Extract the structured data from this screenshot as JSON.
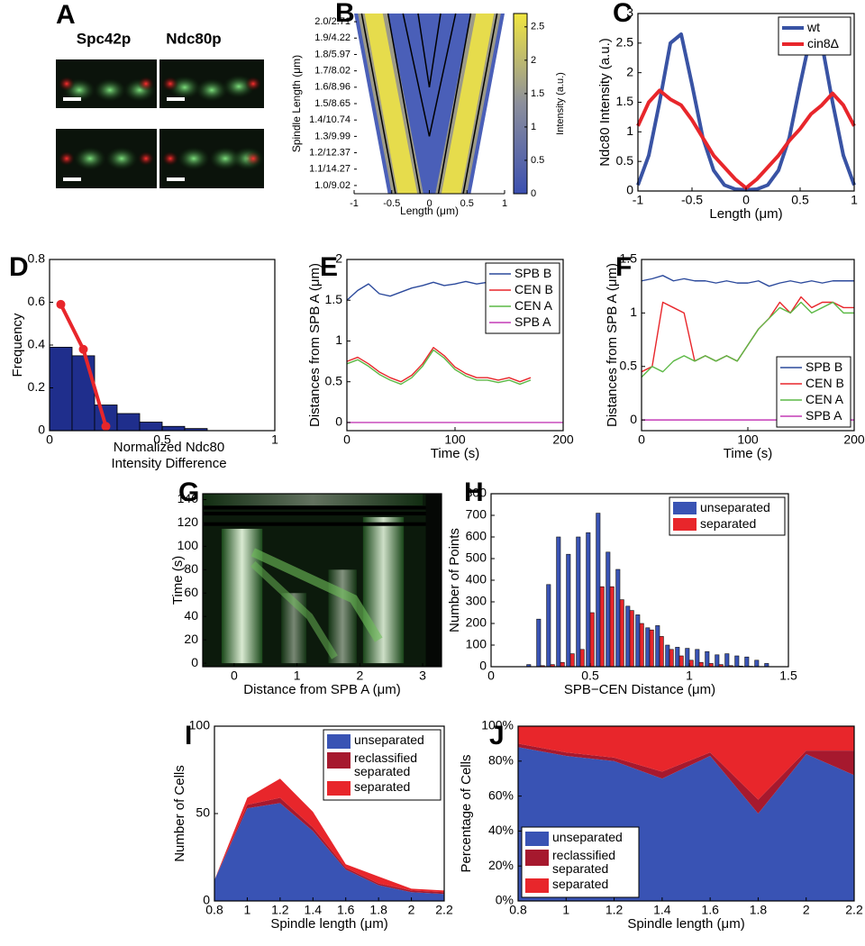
{
  "chart_data": [
    {
      "type": "image",
      "panel": "A",
      "labels": [
        "Spc42p",
        "Ndc80p"
      ],
      "colors": [
        "#e8262b",
        "#2bb24c"
      ]
    },
    {
      "type": "heatmap",
      "panel": "B",
      "ylabel": "Spindle Length (μm)",
      "xlabel": "Length (μm)",
      "categories": [
        "1.0/9.02",
        "1.1/14.27",
        "1.2/12.37",
        "1.3/9.99",
        "1.4/10.74",
        "1.5/8.65",
        "1.6/8.96",
        "1.7/8.02",
        "1.8/5.97",
        "1.9/4.22",
        "2.0/2.71"
      ],
      "xlim": [
        -1,
        1
      ],
      "xticks": [
        -1,
        -0.5,
        0,
        0.5,
        1
      ],
      "colorbar": {
        "lim": [
          0,
          2.7
        ],
        "ticks": [
          0,
          0.5,
          1,
          1.5,
          2,
          2.5
        ],
        "label": "Intensity (a.u.)"
      }
    },
    {
      "type": "line",
      "panel": "C",
      "ylabel": "Ndc80 Intensity (a.u.)",
      "xlabel": "Length (μm)",
      "xlim": [
        -1,
        1
      ],
      "xticks": [
        -1,
        -0.5,
        0,
        0.5,
        1
      ],
      "ylim": [
        0,
        3
      ],
      "yticks": [
        0,
        0.5,
        1,
        1.5,
        2,
        2.5,
        3
      ],
      "legend": "top-right",
      "x": [
        -1,
        -0.9,
        -0.8,
        -0.7,
        -0.6,
        -0.5,
        -0.4,
        -0.3,
        -0.2,
        -0.1,
        0,
        0.1,
        0.2,
        0.3,
        0.4,
        0.5,
        0.6,
        0.7,
        0.8,
        0.9,
        1
      ],
      "series": [
        {
          "name": "wt",
          "color": "#3953a4",
          "values": [
            0.1,
            0.6,
            1.5,
            2.5,
            2.65,
            1.8,
            0.9,
            0.35,
            0.1,
            0.03,
            0.02,
            0.03,
            0.1,
            0.35,
            0.9,
            1.8,
            2.65,
            2.5,
            1.5,
            0.6,
            0.1
          ]
        },
        {
          "name": "cin8Δ",
          "color": "#e8262b",
          "values": [
            1.1,
            1.5,
            1.7,
            1.55,
            1.45,
            1.2,
            0.9,
            0.6,
            0.4,
            0.2,
            0.05,
            0.2,
            0.4,
            0.6,
            0.85,
            1.05,
            1.3,
            1.45,
            1.65,
            1.45,
            1.1
          ]
        }
      ]
    },
    {
      "type": "histogram",
      "panel": "D",
      "ylabel": "Frequency",
      "xlabel": "Normalized Ndc80 Intensity Difference",
      "xlim": [
        0,
        1
      ],
      "xticks": [
        0,
        0.5,
        1
      ],
      "ylim": [
        0,
        0.8
      ],
      "yticks": [
        0,
        0.2,
        0.4,
        0.6,
        0.8
      ],
      "bins": [
        0,
        0.1,
        0.2,
        0.3,
        0.4,
        0.5,
        0.6,
        0.7
      ],
      "values": [
        0.39,
        0.35,
        0.12,
        0.08,
        0.04,
        0.02,
        0.01
      ],
      "color": "#1f2e8c",
      "line": {
        "x": [
          0.05,
          0.15,
          0.25
        ],
        "values": [
          0.59,
          0.38,
          0.02
        ],
        "color": "#e8262b"
      }
    },
    {
      "type": "line",
      "panel": "E",
      "ylabel": "Distances from SPB A (μm)",
      "xlabel": "Time (s)",
      "xlim": [
        0,
        200
      ],
      "xticks": [
        0,
        100,
        200
      ],
      "ylim": [
        -0.1,
        2
      ],
      "yticks": [
        0,
        0.5,
        1,
        1.5,
        2
      ],
      "legend": "top-right",
      "x": [
        0,
        10,
        20,
        30,
        40,
        50,
        60,
        70,
        80,
        90,
        100,
        110,
        120,
        130,
        140,
        150,
        160,
        170,
        180,
        190,
        200
      ],
      "series": [
        {
          "name": "SPB B",
          "color": "#2c4a9c",
          "values": [
            1.5,
            1.62,
            1.7,
            1.58,
            1.55,
            1.6,
            1.65,
            1.68,
            1.72,
            1.68,
            1.7,
            1.73,
            1.7,
            1.72,
            1.68,
            1.65,
            1.62,
            1.6,
            null,
            null,
            null
          ]
        },
        {
          "name": "CEN B",
          "color": "#e8262b",
          "values": [
            0.75,
            0.8,
            0.72,
            0.62,
            0.55,
            0.5,
            0.58,
            0.72,
            0.92,
            0.82,
            0.68,
            0.6,
            0.55,
            0.55,
            0.52,
            0.55,
            0.5,
            0.55,
            null,
            null,
            null
          ]
        },
        {
          "name": "CEN A",
          "color": "#5cb946",
          "values": [
            0.72,
            0.77,
            0.69,
            0.59,
            0.52,
            0.47,
            0.55,
            0.69,
            0.89,
            0.79,
            0.65,
            0.57,
            0.52,
            0.52,
            0.49,
            0.52,
            0.47,
            0.52,
            null,
            null,
            null
          ]
        },
        {
          "name": "SPB A",
          "color": "#c43bb6",
          "values": [
            0,
            0,
            0,
            0,
            0,
            0,
            0,
            0,
            0,
            0,
            0,
            0,
            0,
            0,
            0,
            0,
            0,
            0,
            0,
            0,
            0
          ]
        }
      ]
    },
    {
      "type": "line",
      "panel": "F",
      "ylabel": "Distances from SPB A (μm)",
      "xlabel": "Time (s)",
      "xlim": [
        0,
        200
      ],
      "xticks": [
        0,
        100,
        200
      ],
      "ylim": [
        -0.1,
        1.5
      ],
      "yticks": [
        0,
        0.5,
        1,
        1.5
      ],
      "legend": "bottom-right",
      "x": [
        0,
        10,
        20,
        30,
        40,
        50,
        60,
        70,
        80,
        90,
        100,
        110,
        120,
        130,
        140,
        150,
        160,
        170,
        180,
        190,
        200
      ],
      "series": [
        {
          "name": "SPB B",
          "color": "#2c4a9c",
          "values": [
            1.3,
            1.32,
            1.35,
            1.3,
            1.32,
            1.3,
            1.3,
            1.28,
            1.3,
            1.28,
            1.28,
            1.3,
            1.25,
            1.28,
            1.3,
            1.28,
            1.3,
            1.28,
            1.3,
            1.3,
            1.3
          ]
        },
        {
          "name": "CEN B",
          "color": "#e8262b",
          "values": [
            0.45,
            0.5,
            1.1,
            1.05,
            1.0,
            0.55,
            0.6,
            0.55,
            0.6,
            0.55,
            0.7,
            0.85,
            0.95,
            1.1,
            1.0,
            1.15,
            1.05,
            1.1,
            1.1,
            1.05,
            1.05
          ]
        },
        {
          "name": "CEN A",
          "color": "#5cb946",
          "values": [
            0.4,
            0.5,
            0.45,
            0.55,
            0.6,
            0.55,
            0.6,
            0.55,
            0.6,
            0.55,
            0.7,
            0.85,
            0.95,
            1.05,
            1.0,
            1.1,
            1.0,
            1.05,
            1.1,
            1.0,
            1.0
          ]
        },
        {
          "name": "SPB A",
          "color": "#c43bb6",
          "values": [
            0,
            0,
            0,
            0,
            0,
            0,
            0,
            0,
            0,
            0,
            0,
            0,
            0,
            0,
            0,
            0,
            0,
            0,
            0,
            0,
            0
          ]
        }
      ]
    },
    {
      "type": "kymograph",
      "panel": "G",
      "ylabel": "Time (s)",
      "xlabel": "Distance from SPB A (μm)",
      "xlim": [
        -0.5,
        3.3
      ],
      "xticks": [
        0,
        1,
        2,
        3
      ],
      "ylim": [
        -3,
        145
      ],
      "yticks": [
        0,
        20,
        40,
        60,
        80,
        100,
        120,
        140
      ]
    },
    {
      "type": "bar",
      "panel": "H",
      "ylabel": "Number of Points",
      "xlabel": "SPB−CEN Distance (μm)",
      "xlim": [
        0,
        1.5
      ],
      "xticks": [
        0,
        0.5,
        1,
        1.5
      ],
      "ylim": [
        0,
        800
      ],
      "yticks": [
        0,
        100,
        200,
        300,
        400,
        500,
        600,
        700,
        800
      ],
      "legend": "top-right",
      "x": [
        0.2,
        0.25,
        0.3,
        0.35,
        0.4,
        0.45,
        0.5,
        0.55,
        0.6,
        0.65,
        0.7,
        0.75,
        0.8,
        0.85,
        0.9,
        0.95,
        1.0,
        1.05,
        1.1,
        1.15,
        1.2,
        1.25,
        1.3,
        1.35,
        1.4
      ],
      "series": [
        {
          "name": "unseparated",
          "color": "#3953b4",
          "values": [
            10,
            220,
            380,
            600,
            520,
            600,
            620,
            710,
            530,
            450,
            280,
            240,
            180,
            190,
            100,
            90,
            85,
            80,
            70,
            55,
            60,
            50,
            45,
            30,
            15
          ]
        },
        {
          "name": "separated",
          "color": "#e8262b",
          "values": [
            0,
            5,
            10,
            20,
            60,
            80,
            250,
            370,
            370,
            310,
            260,
            200,
            170,
            140,
            80,
            50,
            30,
            20,
            15,
            10,
            5,
            3,
            2,
            1,
            0
          ]
        }
      ]
    },
    {
      "type": "area",
      "panel": "I",
      "ylabel": "Number of Cells",
      "xlabel": "Spindle length (μm)",
      "xlim": [
        0.8,
        2.2
      ],
      "xticks": [
        0.8,
        1,
        1.2,
        1.4,
        1.6,
        1.8,
        2,
        2.2
      ],
      "ylim": [
        0,
        100
      ],
      "yticks": [
        0,
        50,
        100
      ],
      "legend": "top-right",
      "x": [
        0.8,
        1,
        1.2,
        1.4,
        1.6,
        1.8,
        2,
        2.2
      ],
      "series": [
        {
          "name": "unseparated",
          "color": "#3953b4",
          "values": [
            12,
            53,
            56,
            40,
            18,
            9,
            5,
            4
          ]
        },
        {
          "name": "reclassified separated",
          "color": "#a6192e",
          "values": [
            0,
            2,
            3,
            2,
            1,
            1,
            1,
            1
          ]
        },
        {
          "name": "separated",
          "color": "#e8262b",
          "values": [
            0,
            4,
            11,
            9,
            2,
            4,
            1,
            1
          ]
        }
      ]
    },
    {
      "type": "area",
      "panel": "J",
      "ylabel": "Percentage of Cells",
      "xlabel": "Spindle length (μm)",
      "xlim": [
        0.8,
        2.2
      ],
      "xticks": [
        0.8,
        1,
        1.2,
        1.4,
        1.6,
        1.8,
        2,
        2.2
      ],
      "ylim": [
        0,
        100
      ],
      "yticks": [
        {
          "value": 0,
          "label": "0%"
        },
        {
          "value": 20,
          "label": "20%"
        },
        {
          "value": 40,
          "label": "40%"
        },
        {
          "value": 60,
          "label": "60%"
        },
        {
          "value": 80,
          "label": "80%"
        },
        {
          "value": 100,
          "label": "100%"
        }
      ],
      "legend": "bottom-left",
      "x": [
        0.8,
        1,
        1.2,
        1.4,
        1.6,
        1.8,
        2,
        2.2
      ],
      "series": [
        {
          "name": "unseparated",
          "color": "#3953b4",
          "values": [
            88,
            83,
            80,
            70,
            83,
            50,
            84,
            72
          ]
        },
        {
          "name": "reclassified separated",
          "color": "#a6192e",
          "values": [
            2,
            2,
            2,
            4,
            2,
            8,
            2,
            14
          ]
        },
        {
          "name": "separated",
          "color": "#e8262b",
          "values": [
            10,
            15,
            18,
            26,
            15,
            42,
            14,
            14
          ]
        }
      ]
    }
  ]
}
